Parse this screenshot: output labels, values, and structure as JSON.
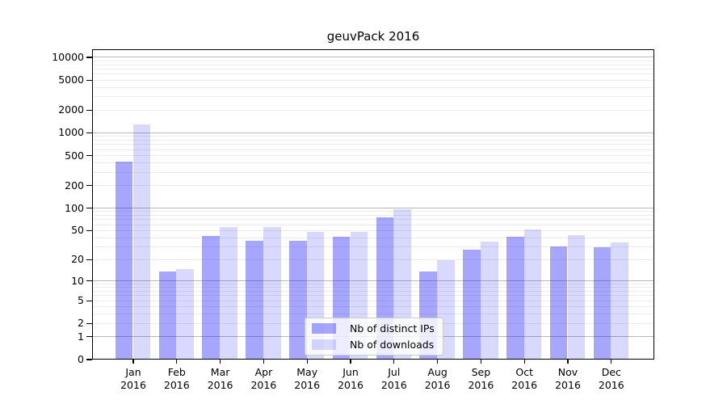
{
  "title": "geuvPack 2016",
  "chart_data": {
    "type": "bar",
    "title": "geuvPack 2016",
    "categories": [
      "Jan",
      "Feb",
      "Mar",
      "Apr",
      "May",
      "Jun",
      "Jul",
      "Aug",
      "Sep",
      "Oct",
      "Nov",
      "Dec"
    ],
    "x_year": "2016",
    "series": [
      {
        "name": "Nb of distinct IPs",
        "color": "rgba(0,0,255,0.35)",
        "color_hex": "#a6a6ff",
        "values": [
          420,
          14,
          43,
          37,
          37,
          42,
          77,
          14,
          28,
          42,
          31,
          30
        ]
      },
      {
        "name": "Nb of downloads",
        "color": "rgba(0,0,255,0.15)",
        "color_hex": "#d9d9ff",
        "values": [
          1300,
          15,
          56,
          57,
          48,
          48,
          97,
          20,
          36,
          52,
          44,
          35
        ]
      }
    ],
    "yticks": [
      0,
      1,
      2,
      5,
      10,
      20,
      50,
      100,
      200,
      500,
      1000,
      2000,
      5000,
      10000
    ],
    "yscale": "log1p",
    "ylim": [
      0,
      15000
    ],
    "xlabel": "",
    "ylabel": "",
    "grid": "horizontal major and minor log gridlines",
    "legend_position": "inside lower-center"
  },
  "colors": {
    "bar_distinct_ips": "rgba(0,0,255,0.35)",
    "bar_downloads": "rgba(0,0,255,0.15)",
    "major_gridline": "#b8b8b8",
    "minor_gridline": "#ececec",
    "axis": "#000000",
    "background": "#ffffff"
  }
}
